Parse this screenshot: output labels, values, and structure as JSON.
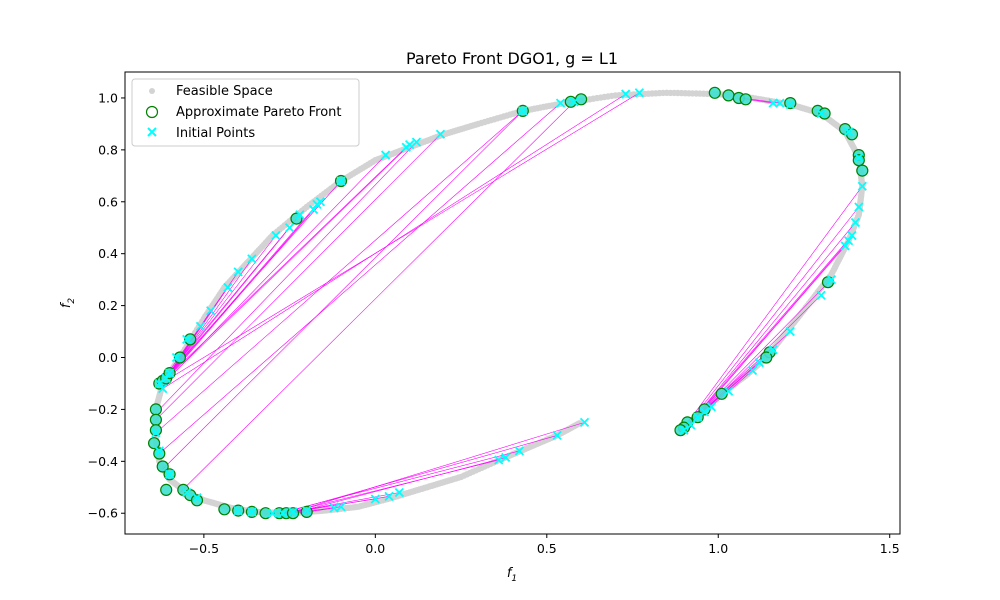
{
  "chart_data": {
    "type": "scatter",
    "title": "Pareto Front DGO1, g = L1",
    "xlabel": "f",
    "xlabel_sub": "1",
    "ylabel": "f",
    "ylabel_sub": "2",
    "xlim": [
      -0.73,
      1.53
    ],
    "ylim": [
      -0.68,
      1.1
    ],
    "xticks": [
      -0.5,
      0.0,
      0.5,
      1.0,
      1.5
    ],
    "xtick_labels": [
      "−0.5",
      "0.0",
      "0.5",
      "1.0",
      "1.5"
    ],
    "yticks": [
      -0.6,
      -0.4,
      -0.2,
      0.0,
      0.2,
      0.4,
      0.6,
      0.8,
      1.0
    ],
    "ytick_labels": [
      "−0.6",
      "−0.4",
      "−0.2",
      "0.0",
      "0.2",
      "0.4",
      "0.6",
      "0.8",
      "1.0"
    ],
    "grid": false,
    "legend_position": "top-left",
    "colors": {
      "feasible": "#d3d3d3",
      "pareto_edge": "#008000",
      "initial": "#00ffff",
      "link": "#ff00ff",
      "initial_fill_on_pareto": "#40e0d0"
    },
    "series": [
      {
        "name": "Feasible Space",
        "marker": "dot",
        "segments": [
          [
            [
              -0.64,
              -0.31
            ],
            [
              -0.64,
              -0.2
            ],
            [
              -0.62,
              -0.1
            ],
            [
              -0.57,
              0.0
            ],
            [
              -0.5,
              0.15
            ],
            [
              -0.44,
              0.27
            ],
            [
              -0.37,
              0.37
            ],
            [
              -0.3,
              0.47
            ],
            [
              -0.2,
              0.58
            ],
            [
              -0.1,
              0.68
            ],
            [
              0.0,
              0.76
            ],
            [
              0.1,
              0.81
            ],
            [
              0.2,
              0.86
            ],
            [
              0.3,
              0.9
            ],
            [
              0.43,
              0.95
            ],
            [
              0.55,
              0.98
            ],
            [
              0.7,
              1.01
            ],
            [
              0.85,
              1.02
            ],
            [
              1.0,
              1.015
            ],
            [
              1.1,
              1.0
            ],
            [
              1.21,
              0.975
            ],
            [
              1.3,
              0.94
            ],
            [
              1.37,
              0.87
            ],
            [
              1.41,
              0.77
            ],
            [
              1.42,
              0.66
            ],
            [
              1.41,
              0.55
            ],
            [
              1.38,
              0.45
            ],
            [
              1.33,
              0.32
            ],
            [
              1.26,
              0.2
            ],
            [
              1.2,
              0.1
            ],
            [
              1.14,
              0.0
            ],
            [
              1.08,
              -0.07
            ],
            [
              1.0,
              -0.15
            ],
            [
              0.95,
              -0.21
            ],
            [
              0.91,
              -0.26
            ],
            [
              0.89,
              -0.28
            ]
          ],
          [
            [
              -0.64,
              -0.31
            ],
            [
              -0.63,
              -0.4
            ],
            [
              -0.6,
              -0.47
            ],
            [
              -0.55,
              -0.52
            ],
            [
              -0.5,
              -0.55
            ],
            [
              -0.42,
              -0.58
            ],
            [
              -0.35,
              -0.595
            ],
            [
              -0.25,
              -0.6
            ],
            [
              -0.15,
              -0.59
            ],
            [
              -0.05,
              -0.575
            ],
            [
              0.05,
              -0.54
            ],
            [
              0.15,
              -0.5
            ],
            [
              0.25,
              -0.46
            ],
            [
              0.37,
              -0.39
            ],
            [
              0.45,
              -0.345
            ],
            [
              0.53,
              -0.3
            ],
            [
              0.6,
              -0.25
            ]
          ]
        ]
      },
      {
        "name": "Approximate Pareto Front",
        "marker": "open-circle",
        "points": [
          [
            -0.63,
            -0.1
          ],
          [
            -0.62,
            -0.09
          ],
          [
            -0.61,
            -0.08
          ],
          [
            -0.6,
            -0.06
          ],
          [
            -0.57,
            0.0
          ],
          [
            -0.54,
            0.07
          ],
          [
            -0.64,
            -0.2
          ],
          [
            -0.64,
            -0.24
          ],
          [
            -0.64,
            -0.28
          ],
          [
            -0.645,
            -0.33
          ],
          [
            -0.63,
            -0.37
          ],
          [
            -0.62,
            -0.42
          ],
          [
            -0.6,
            -0.45
          ],
          [
            -0.61,
            -0.51
          ],
          [
            -0.56,
            -0.51
          ],
          [
            -0.54,
            -0.53
          ],
          [
            -0.52,
            -0.55
          ],
          [
            -0.44,
            -0.585
          ],
          [
            -0.4,
            -0.59
          ],
          [
            -0.36,
            -0.595
          ],
          [
            -0.32,
            -0.6
          ],
          [
            -0.28,
            -0.6
          ],
          [
            -0.26,
            -0.6
          ],
          [
            -0.24,
            -0.6
          ],
          [
            -0.2,
            -0.595
          ],
          [
            -0.1,
            0.68
          ],
          [
            -0.23,
            0.535
          ],
          [
            0.43,
            0.95
          ],
          [
            0.57,
            0.985
          ],
          [
            0.6,
            0.995
          ],
          [
            0.99,
            1.02
          ],
          [
            1.03,
            1.01
          ],
          [
            1.06,
            1.0
          ],
          [
            1.08,
            0.995
          ],
          [
            1.21,
            0.98
          ],
          [
            1.29,
            0.95
          ],
          [
            1.31,
            0.94
          ],
          [
            1.37,
            0.88
          ],
          [
            1.39,
            0.86
          ],
          [
            1.41,
            0.78
          ],
          [
            1.41,
            0.76
          ],
          [
            1.42,
            0.72
          ],
          [
            1.32,
            0.29
          ],
          [
            1.15,
            0.02
          ],
          [
            1.14,
            0.0
          ],
          [
            1.01,
            -0.14
          ],
          [
            0.96,
            -0.2
          ],
          [
            0.94,
            -0.23
          ],
          [
            0.91,
            -0.25
          ],
          [
            0.9,
            -0.27
          ],
          [
            0.89,
            -0.28
          ]
        ]
      },
      {
        "name": "Initial Points",
        "marker": "x",
        "points": [
          [
            -0.63,
            -0.1
          ],
          [
            -0.62,
            -0.12
          ],
          [
            -0.61,
            -0.08
          ],
          [
            -0.6,
            -0.06
          ],
          [
            -0.58,
            0.0
          ],
          [
            -0.55,
            0.07
          ],
          [
            -0.51,
            0.12
          ],
          [
            -0.48,
            0.18
          ],
          [
            -0.43,
            0.27
          ],
          [
            -0.4,
            0.33
          ],
          [
            -0.36,
            0.38
          ],
          [
            -0.29,
            0.47
          ],
          [
            -0.25,
            0.5
          ],
          [
            -0.22,
            0.55
          ],
          [
            -0.18,
            0.57
          ],
          [
            -0.17,
            0.59
          ],
          [
            -0.16,
            0.6
          ],
          [
            -0.1,
            0.68
          ],
          [
            0.03,
            0.78
          ],
          [
            0.09,
            0.81
          ],
          [
            0.1,
            0.82
          ],
          [
            0.12,
            0.83
          ],
          [
            0.19,
            0.86
          ],
          [
            0.43,
            0.95
          ],
          [
            0.54,
            0.98
          ],
          [
            0.58,
            0.985
          ],
          [
            0.73,
            1.015
          ],
          [
            0.77,
            1.02
          ],
          [
            1.16,
            0.98
          ],
          [
            1.18,
            0.98
          ],
          [
            1.21,
            0.975
          ],
          [
            1.3,
            0.94
          ],
          [
            1.38,
            0.87
          ],
          [
            1.41,
            0.77
          ],
          [
            1.42,
            0.66
          ],
          [
            1.41,
            0.58
          ],
          [
            1.4,
            0.52
          ],
          [
            1.39,
            0.47
          ],
          [
            1.38,
            0.45
          ],
          [
            1.37,
            0.43
          ],
          [
            1.33,
            0.3
          ],
          [
            1.3,
            0.24
          ],
          [
            1.21,
            0.1
          ],
          [
            1.16,
            0.03
          ],
          [
            1.12,
            -0.02
          ],
          [
            1.1,
            -0.05
          ],
          [
            1.03,
            -0.13
          ],
          [
            0.98,
            -0.19
          ],
          [
            0.96,
            -0.21
          ],
          [
            0.94,
            -0.23
          ],
          [
            0.92,
            -0.26
          ],
          [
            0.9,
            -0.28
          ],
          [
            -0.64,
            -0.29
          ],
          [
            -0.63,
            -0.36
          ],
          [
            -0.6,
            -0.45
          ],
          [
            -0.55,
            -0.52
          ],
          [
            -0.52,
            -0.54
          ],
          [
            -0.4,
            -0.59
          ],
          [
            -0.36,
            -0.595
          ],
          [
            -0.3,
            -0.6
          ],
          [
            -0.27,
            -0.6
          ],
          [
            -0.24,
            -0.595
          ],
          [
            -0.2,
            -0.59
          ],
          [
            -0.12,
            -0.58
          ],
          [
            -0.1,
            -0.575
          ],
          [
            0.0,
            -0.545
          ],
          [
            0.04,
            -0.535
          ],
          [
            0.07,
            -0.52
          ],
          [
            0.36,
            -0.395
          ],
          [
            0.38,
            -0.385
          ],
          [
            0.42,
            -0.36
          ],
          [
            0.53,
            -0.3
          ],
          [
            0.61,
            -0.25
          ]
        ]
      }
    ],
    "links": [
      [
        [
          0.77,
          1.02
        ],
        [
          -0.6,
          -0.08
        ]
      ],
      [
        [
          0.73,
          1.015
        ],
        [
          -0.62,
          -0.12
        ]
      ],
      [
        [
          0.58,
          0.985
        ],
        [
          -0.57,
          -0.52
        ]
      ],
      [
        [
          0.54,
          0.98
        ],
        [
          -0.63,
          -0.37
        ]
      ],
      [
        [
          0.43,
          0.95
        ],
        [
          -0.62,
          -0.43
        ]
      ],
      [
        [
          0.43,
          0.95
        ],
        [
          -0.64,
          -0.29
        ]
      ],
      [
        [
          0.19,
          0.86
        ],
        [
          -0.64,
          -0.24
        ]
      ],
      [
        [
          0.12,
          0.83
        ],
        [
          -0.63,
          -0.2
        ]
      ],
      [
        [
          0.1,
          0.82
        ],
        [
          -0.62,
          -0.1
        ]
      ],
      [
        [
          0.09,
          0.81
        ],
        [
          -0.61,
          -0.08
        ]
      ],
      [
        [
          0.03,
          0.78
        ],
        [
          -0.61,
          -0.09
        ]
      ],
      [
        [
          -0.1,
          0.68
        ],
        [
          -0.6,
          -0.06
        ]
      ],
      [
        [
          -0.16,
          0.6
        ],
        [
          -0.62,
          -0.1
        ]
      ],
      [
        [
          -0.17,
          0.59
        ],
        [
          -0.61,
          -0.08
        ]
      ],
      [
        [
          -0.18,
          0.57
        ],
        [
          -0.6,
          -0.07
        ]
      ],
      [
        [
          -0.22,
          0.55
        ],
        [
          -0.62,
          -0.09
        ]
      ],
      [
        [
          -0.25,
          0.5
        ],
        [
          -0.61,
          -0.08
        ]
      ],
      [
        [
          -0.29,
          0.47
        ],
        [
          -0.6,
          -0.06
        ]
      ],
      [
        [
          -0.36,
          0.38
        ],
        [
          -0.62,
          -0.1
        ]
      ],
      [
        [
          -0.4,
          0.33
        ],
        [
          -0.61,
          -0.07
        ]
      ],
      [
        [
          -0.43,
          0.27
        ],
        [
          -0.6,
          -0.06
        ]
      ],
      [
        [
          -0.48,
          0.18
        ],
        [
          -0.61,
          -0.09
        ]
      ],
      [
        [
          -0.51,
          0.12
        ],
        [
          -0.62,
          -0.1
        ]
      ],
      [
        [
          0.61,
          -0.25
        ],
        [
          -0.25,
          -0.6
        ]
      ],
      [
        [
          0.53,
          -0.3
        ],
        [
          -0.27,
          -0.6
        ]
      ],
      [
        [
          0.42,
          -0.36
        ],
        [
          -0.28,
          -0.6
        ]
      ],
      [
        [
          0.38,
          -0.385
        ],
        [
          -0.24,
          -0.6
        ]
      ],
      [
        [
          0.36,
          -0.395
        ],
        [
          -0.26,
          -0.6
        ]
      ],
      [
        [
          0.07,
          -0.52
        ],
        [
          -0.24,
          -0.595
        ]
      ],
      [
        [
          0.04,
          -0.535
        ],
        [
          -0.26,
          -0.6
        ]
      ],
      [
        [
          0.0,
          -0.545
        ],
        [
          -0.27,
          -0.6
        ]
      ],
      [
        [
          -0.1,
          -0.575
        ],
        [
          -0.24,
          -0.6
        ]
      ],
      [
        [
          -0.12,
          -0.58
        ],
        [
          -0.22,
          -0.6
        ]
      ],
      [
        [
          1.42,
          0.66
        ],
        [
          0.9,
          -0.27
        ]
      ],
      [
        [
          1.41,
          0.58
        ],
        [
          0.91,
          -0.26
        ]
      ],
      [
        [
          1.4,
          0.52
        ],
        [
          0.92,
          -0.25
        ]
      ],
      [
        [
          1.39,
          0.47
        ],
        [
          0.9,
          -0.28
        ]
      ],
      [
        [
          1.38,
          0.45
        ],
        [
          0.93,
          -0.24
        ]
      ],
      [
        [
          1.37,
          0.43
        ],
        [
          0.91,
          -0.27
        ]
      ],
      [
        [
          1.33,
          0.3
        ],
        [
          0.92,
          -0.25
        ]
      ],
      [
        [
          1.3,
          0.24
        ],
        [
          0.94,
          -0.23
        ]
      ],
      [
        [
          1.21,
          0.1
        ],
        [
          0.9,
          -0.27
        ]
      ],
      [
        [
          1.16,
          0.03
        ],
        [
          0.91,
          -0.26
        ]
      ],
      [
        [
          1.12,
          -0.02
        ],
        [
          0.92,
          -0.25
        ]
      ],
      [
        [
          1.1,
          -0.05
        ],
        [
          0.9,
          -0.28
        ]
      ],
      [
        [
          1.16,
          0.98
        ],
        [
          1.06,
          1.0
        ]
      ],
      [
        [
          1.18,
          0.98
        ],
        [
          1.07,
          1.0
        ]
      ]
    ]
  }
}
